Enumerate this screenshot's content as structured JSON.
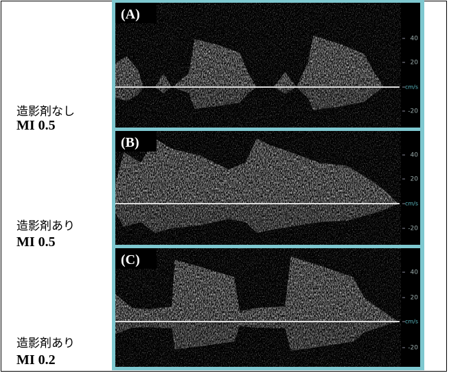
{
  "panels": [
    {
      "tag": "(A)",
      "condition": "造影剤なし",
      "mi": "MI 0.5",
      "scale": [
        "40",
        "20",
        "cm/s",
        "-20"
      ]
    },
    {
      "tag": "(B)",
      "condition": "造影剤あり",
      "mi": "MI 0.5",
      "scale": [
        "40",
        "20",
        "cm/s",
        "-20"
      ]
    },
    {
      "tag": "(C)",
      "condition": "造影剤あり",
      "mi": "MI 0.2",
      "scale": [
        "40",
        "20",
        "cm/s",
        "-20"
      ]
    }
  ]
}
